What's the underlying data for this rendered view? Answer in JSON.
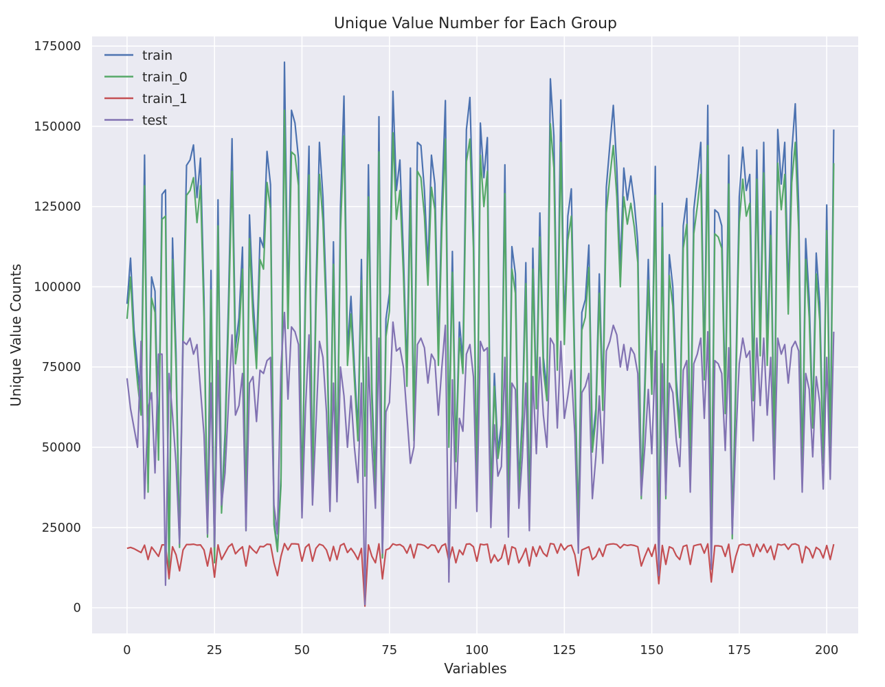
{
  "chart_data": {
    "type": "line",
    "title": "Unique Value Number for Each Group",
    "xlabel": "Variables",
    "ylabel": "Unique Value Counts",
    "xlim": [
      -10,
      209
    ],
    "ylim": [
      -8000,
      178000
    ],
    "xticks": [
      0,
      25,
      50,
      75,
      100,
      125,
      150,
      175,
      200
    ],
    "yticks": [
      0,
      25000,
      50000,
      75000,
      100000,
      125000,
      150000,
      175000
    ],
    "grid": true,
    "legend_position": "top-left",
    "series": [
      {
        "name": "train",
        "color": "#4c72b0",
        "values": [
          94672,
          108932,
          86555,
          74597,
          63515,
          141029,
          38599,
          103063,
          98617,
          49417,
          128764,
          130193,
          9561,
          115181,
          79122,
          19810,
          86918,
          137823,
          139515,
          144180,
          127764,
          140062,
          96404,
          23416,
          105101,
          14853,
          127089,
          31318,
          54385,
          96001,
          146136,
          81025,
          90287,
          112353,
          25346,
          122364,
          96350,
          79030,
          115315,
          112215,
          142167,
          131798,
          27384,
          18500,
          40500,
          169968,
          92500,
          155000,
          151000,
          140000,
          32000,
          102000,
          143798,
          38000,
          98500,
          145000,
          128000,
          95000,
          38500,
          114000,
          39000,
          125000,
          159420,
          80000,
          97000,
          75000,
          55000,
          108500,
          43500,
          138000,
          68000,
          38000,
          153000,
          16000,
          90000,
          98000,
          160900,
          130000,
          139500,
          110000,
          73000,
          137000,
          55000,
          145000,
          144000,
          130000,
          106000,
          141000,
          132000,
          80000,
          126000,
          158000,
          53000,
          111000,
          48000,
          89000,
          77000,
          149000,
          159000,
          119000,
          38500,
          151000,
          134000,
          146500,
          32000,
          73000,
          49000,
          57000,
          138000,
          35000,
          112500,
          104000,
          38000,
          60000,
          107500,
          28000,
          112000,
          65000,
          123000,
          78000,
          68000,
          164800,
          147000,
          78000,
          158200,
          87000,
          122000,
          130500,
          74000,
          25000,
          92000,
          96000,
          113000,
          51000,
          62000,
          104000,
          65000,
          131000,
          144000,
          156500,
          137000,
          106000,
          137000,
          127000,
          134500,
          126000,
          114000,
          36000,
          70000,
          108500,
          70000,
          137500,
          13000,
          126000,
          36000,
          110000,
          100000,
          71000,
          56000,
          119000,
          127500,
          44000,
          124000,
          134000,
          145000,
          75000,
          156500,
          20000,
          124000,
          123000,
          119000,
          64000,
          141000,
          23000,
          71000,
          128000,
          143500,
          130000,
          135000,
          68000,
          142600,
          83000,
          145000,
          80000,
          123500,
          50000,
          149000,
          132000,
          145000,
          97000,
          142000,
          157000,
          125000,
          42000,
          115000,
          96000,
          59000,
          110500,
          95000,
          48000,
          125500,
          49000,
          149000
        ]
      },
      {
        "name": "train_0",
        "color": "#55a868",
        "values": [
          90000,
          103000,
          82000,
          70000,
          60000,
          131500,
          36000,
          96500,
          92000,
          46000,
          121000,
          122000,
          9000,
          108500,
          74500,
          18800,
          82000,
          128500,
          130000,
          134000,
          120000,
          131500,
          90500,
          22000,
          99000,
          14000,
          119000,
          29500,
          51000,
          90000,
          136000,
          76000,
          85000,
          105500,
          24000,
          115000,
          90500,
          74500,
          108500,
          105500,
          132500,
          124000,
          26000,
          17500,
          38000,
          155000,
          87000,
          142000,
          141000,
          131500,
          30000,
          96000,
          134800,
          36000,
          92500,
          135000,
          120500,
          89500,
          36500,
          107000,
          37000,
          117500,
          147000,
          75500,
          91500,
          71000,
          52000,
          102000,
          41000,
          128000,
          64000,
          36000,
          142000,
          15500,
          84500,
          92500,
          148000,
          121000,
          130000,
          104000,
          69000,
          127000,
          52000,
          136000,
          134000,
          122000,
          100500,
          131000,
          124000,
          75500,
          118500,
          146000,
          50000,
          104500,
          45500,
          84000,
          73000,
          139000,
          146000,
          112000,
          36500,
          141000,
          125000,
          136000,
          30500,
          69000,
          46500,
          54000,
          129000,
          33000,
          105500,
          98000,
          36000,
          57000,
          101000,
          26500,
          105500,
          62000,
          115500,
          74000,
          64500,
          150800,
          137000,
          74000,
          145000,
          82000,
          114500,
          122000,
          70000,
          23800,
          86500,
          90500,
          106000,
          48500,
          59000,
          98000,
          61500,
          123000,
          134000,
          144000,
          128000,
          100000,
          128000,
          119500,
          126000,
          118500,
          107500,
          34000,
          66000,
          102000,
          66500,
          128500,
          12500,
          118500,
          34000,
          103500,
          94000,
          67000,
          53000,
          112000,
          119500,
          41500,
          116500,
          125000,
          135000,
          71000,
          144000,
          19000,
          116500,
          115500,
          112000,
          60500,
          132000,
          21500,
          67000,
          120000,
          133500,
          122000,
          126000,
          64500,
          133500,
          78500,
          135500,
          75500,
          116000,
          47500,
          138500,
          124000,
          135000,
          91500,
          132500,
          145000,
          117500,
          39500,
          108500,
          90500,
          56000,
          104000,
          89500,
          45000,
          117500,
          46000,
          138500
        ]
      },
      {
        "name": "train_1",
        "color": "#c44e52",
        "values": [
          18500,
          18800,
          18400,
          17800,
          17200,
          19500,
          15000,
          18900,
          17500,
          16000,
          19600,
          19600,
          9200,
          19000,
          16500,
          11500,
          18000,
          19700,
          19700,
          19800,
          19500,
          19600,
          18000,
          13000,
          18600,
          9500,
          19600,
          15000,
          17000,
          19000,
          19900,
          16800,
          18000,
          19000,
          13000,
          19300,
          18000,
          17000,
          19100,
          19000,
          19800,
          19700,
          14000,
          10000,
          16000,
          20000,
          18000,
          19900,
          19900,
          19800,
          14500,
          18800,
          19800,
          14500,
          18500,
          19800,
          19400,
          18000,
          14600,
          19100,
          15000,
          19400,
          20000,
          17200,
          18500,
          17000,
          15000,
          18500,
          500,
          19600,
          16000,
          14000,
          19900,
          9000,
          18000,
          18500,
          19900,
          19500,
          19700,
          19000,
          17000,
          19700,
          15500,
          19800,
          19700,
          19400,
          18500,
          19600,
          19400,
          17200,
          19300,
          19900,
          14500,
          18900,
          14000,
          18000,
          16500,
          19800,
          19900,
          19000,
          14500,
          19800,
          19600,
          19800,
          14000,
          16500,
          14500,
          15500,
          19600,
          13500,
          19000,
          18500,
          14000,
          16000,
          18500,
          13000,
          19000,
          16000,
          19200,
          17000,
          16000,
          20000,
          19800,
          17000,
          19900,
          18000,
          19200,
          19500,
          16500,
          10000,
          18000,
          18500,
          19000,
          15000,
          16000,
          18500,
          16000,
          19500,
          19800,
          19900,
          19700,
          18600,
          19700,
          19400,
          19600,
          19400,
          19000,
          13000,
          16000,
          18600,
          16000,
          19700,
          7500,
          19400,
          13500,
          19000,
          18500,
          16200,
          15000,
          19100,
          19500,
          13500,
          19300,
          19600,
          19800,
          17000,
          19900,
          8000,
          19300,
          19300,
          19100,
          16000,
          19800,
          11000,
          16000,
          19500,
          19800,
          19500,
          19700,
          16000,
          19800,
          17500,
          19800,
          17200,
          19200,
          15000,
          19800,
          19500,
          19800,
          18200,
          19700,
          19900,
          19400,
          14000,
          19100,
          18200,
          15500,
          18800,
          18000,
          15500,
          19400,
          15000,
          19800
        ]
      },
      {
        "name": "test",
        "color": "#8172b2",
        "values": [
          71500,
          62000,
          56000,
          50000,
          83000,
          34000,
          62000,
          67000,
          42000,
          79000,
          79000,
          7000,
          73000,
          60000,
          45000,
          20000,
          83000,
          82000,
          84000,
          79000,
          82000,
          68000,
          54000,
          23000,
          70000,
          19000,
          77000,
          32000,
          42000,
          64000,
          85000,
          60000,
          63000,
          73000,
          24000,
          70000,
          72000,
          58000,
          74000,
          73000,
          77000,
          78000,
          32000,
          23000,
          75000,
          92000,
          65000,
          87500,
          86000,
          82000,
          28000,
          62000,
          85000,
          32000,
          57000,
          83000,
          78000,
          61000,
          30000,
          70000,
          33000,
          75000,
          66000,
          50000,
          66000,
          50000,
          39000,
          70000,
          1000,
          78000,
          50000,
          31000,
          84000,
          17000,
          61000,
          64000,
          89000,
          80000,
          81000,
          75000,
          60000,
          45000,
          50000,
          82000,
          84000,
          81000,
          70000,
          79000,
          77000,
          60000,
          75000,
          88000,
          8000,
          71000,
          31000,
          59000,
          55000,
          79000,
          82000,
          72000,
          30000,
          83000,
          80000,
          81000,
          25000,
          57000,
          41000,
          44000,
          78000,
          22000,
          70000,
          68000,
          31000,
          47000,
          70000,
          24000,
          72000,
          48000,
          78000,
          60000,
          50000,
          84000,
          82000,
          56000,
          83000,
          59000,
          66000,
          74000,
          54000,
          17000,
          67000,
          69000,
          73000,
          34000,
          47000,
          66000,
          45000,
          80000,
          83000,
          88000,
          85000,
          75000,
          82000,
          74000,
          81000,
          79000,
          73000,
          35000,
          50000,
          68000,
          48000,
          80000,
          10000,
          76000,
          35000,
          70000,
          67000,
          52000,
          44000,
          74000,
          77000,
          36000,
          76000,
          79000,
          84000,
          59000,
          86000,
          12000,
          77000,
          76000,
          73000,
          49000,
          81000,
          23000,
          52000,
          76000,
          84000,
          78000,
          80000,
          52000,
          84000,
          63000,
          84000,
          60000,
          78000,
          40000,
          84000,
          79000,
          82000,
          70000,
          81000,
          83000,
          80000,
          36000,
          73000,
          68000,
          47000,
          72000,
          64000,
          37000,
          78000,
          40000,
          86000
        ]
      }
    ]
  }
}
